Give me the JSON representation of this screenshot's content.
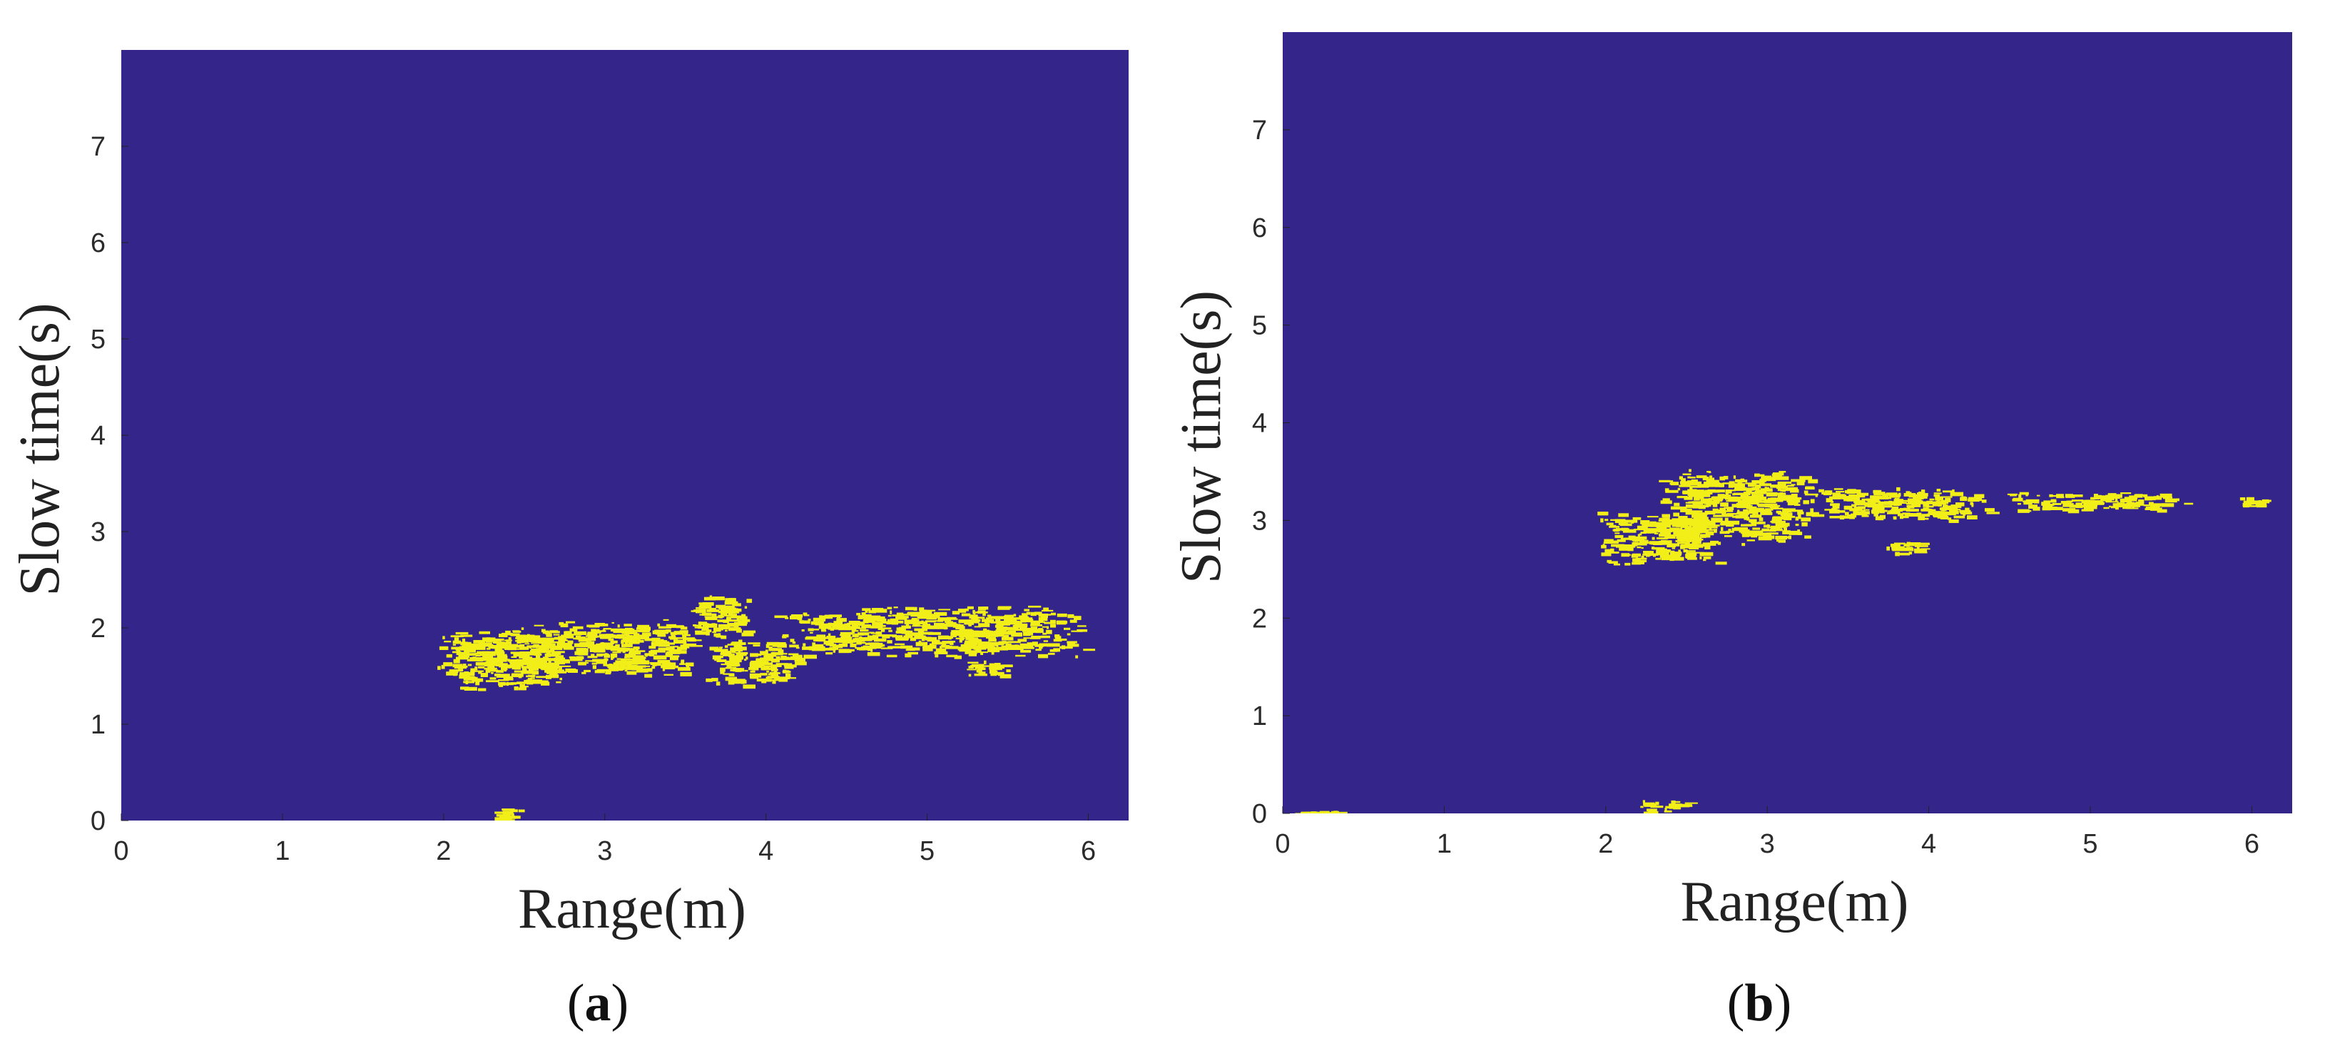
{
  "colors": {
    "background": "#332589",
    "foreground": "#f2ef18",
    "page": "#ffffff"
  },
  "chart_data": [
    {
      "type": "heatmap",
      "panel_label": "a",
      "xlabel": "Range(m)",
      "ylabel": "Slow time(s)",
      "xlim": [
        0,
        6.25
      ],
      "ylim": [
        0,
        8
      ],
      "xticks": [
        "0",
        "1",
        "2",
        "3",
        "4",
        "5",
        "6"
      ],
      "yticks": [
        "0",
        "1",
        "2",
        "3",
        "4",
        "5",
        "6",
        "7"
      ],
      "grid": false,
      "regions": [
        {
          "x_min": 1.95,
          "x_max": 2.75,
          "y_min": 1.35,
          "y_max": 2.0
        },
        {
          "x_min": 2.3,
          "x_max": 3.6,
          "y_min": 1.5,
          "y_max": 2.1
        },
        {
          "x_min": 3.5,
          "x_max": 3.9,
          "y_min": 1.9,
          "y_max": 2.35
        },
        {
          "x_min": 3.6,
          "x_max": 4.2,
          "y_min": 1.4,
          "y_max": 1.9
        },
        {
          "x_min": 4.0,
          "x_max": 6.0,
          "y_min": 1.7,
          "y_max": 2.25
        },
        {
          "x_min": 5.2,
          "x_max": 5.5,
          "y_min": 1.5,
          "y_max": 1.7
        },
        {
          "x_min": 2.3,
          "x_max": 2.5,
          "y_min": 0.0,
          "y_max": 0.15
        }
      ]
    },
    {
      "type": "heatmap",
      "panel_label": "b",
      "xlabel": "Range(m)",
      "ylabel": "Slow time(s)",
      "xlim": [
        0,
        6.25
      ],
      "ylim": [
        0,
        8
      ],
      "xticks": [
        "0",
        "1",
        "2",
        "3",
        "4",
        "5",
        "6"
      ],
      "yticks": [
        "0",
        "1",
        "2",
        "3",
        "4",
        "5",
        "6",
        "7"
      ],
      "grid": false,
      "regions": [
        {
          "x_min": 1.9,
          "x_max": 2.7,
          "y_min": 2.55,
          "y_max": 3.1
        },
        {
          "x_min": 2.3,
          "x_max": 3.3,
          "y_min": 2.75,
          "y_max": 3.55
        },
        {
          "x_min": 3.2,
          "x_max": 4.4,
          "y_min": 3.0,
          "y_max": 3.35
        },
        {
          "x_min": 3.7,
          "x_max": 4.0,
          "y_min": 2.65,
          "y_max": 2.8
        },
        {
          "x_min": 4.4,
          "x_max": 5.6,
          "y_min": 3.1,
          "y_max": 3.3
        },
        {
          "x_min": 5.9,
          "x_max": 6.1,
          "y_min": 3.15,
          "y_max": 3.25
        },
        {
          "x_min": 2.2,
          "x_max": 2.5,
          "y_min": 0.0,
          "y_max": 0.15
        },
        {
          "x_min": 0.05,
          "x_max": 0.35,
          "y_min": 0.0,
          "y_max": 0.03
        }
      ]
    }
  ]
}
